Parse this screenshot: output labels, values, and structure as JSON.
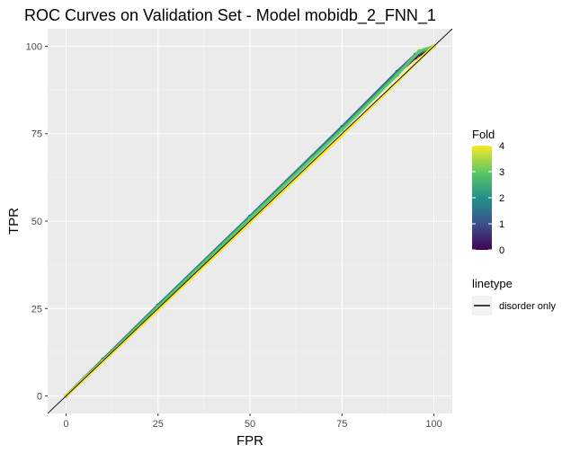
{
  "chart_data": {
    "type": "line",
    "title": "ROC Curves on Validation Set - Model mobidb_2_FNN_1",
    "xlabel": "FPR",
    "ylabel": "TPR",
    "xlim": [
      -5,
      105
    ],
    "ylim": [
      -5,
      105
    ],
    "x_ticks": [
      0,
      25,
      50,
      75,
      100
    ],
    "y_ticks": [
      0,
      25,
      50,
      75,
      100
    ],
    "grid": true,
    "panel_background": "#ebebeb",
    "reference_line": {
      "from": [
        0,
        0
      ],
      "to": [
        100,
        100
      ],
      "color": "#000000"
    },
    "colorbar": {
      "title": "Fold",
      "min": 0,
      "max": 4,
      "ticks": [
        0,
        1,
        2,
        3,
        4
      ],
      "palette": [
        "#440154",
        "#3b528b",
        "#21918c",
        "#5ec962",
        "#fde725"
      ]
    },
    "linetype_legend": {
      "title": "linetype",
      "label": "disorder only"
    },
    "series": [
      {
        "fold": 0,
        "color": "#440154",
        "points": [
          [
            0,
            0
          ],
          [
            10,
            10.3
          ],
          [
            25,
            25.6
          ],
          [
            50,
            51
          ],
          [
            75,
            76.5
          ],
          [
            90,
            92.2
          ],
          [
            95,
            96.8
          ],
          [
            100,
            100
          ]
        ]
      },
      {
        "fold": 1,
        "color": "#3b528b",
        "points": [
          [
            0,
            0
          ],
          [
            10,
            10.4
          ],
          [
            25,
            25.9
          ],
          [
            50,
            51.3
          ],
          [
            75,
            76.9
          ],
          [
            90,
            92.7
          ],
          [
            95,
            97.6
          ],
          [
            100,
            100
          ]
        ]
      },
      {
        "fold": 2,
        "color": "#21918c",
        "points": [
          [
            0,
            0
          ],
          [
            10,
            10.2
          ],
          [
            25,
            25.7
          ],
          [
            50,
            51.1
          ],
          [
            75,
            76.6
          ],
          [
            90,
            92.3
          ],
          [
            96,
            98.2
          ],
          [
            100,
            100
          ]
        ]
      },
      {
        "fold": 3,
        "color": "#5ec962",
        "points": [
          [
            0,
            0
          ],
          [
            10,
            10.1
          ],
          [
            25,
            25.4
          ],
          [
            50,
            50.8
          ],
          [
            75,
            76.1
          ],
          [
            90,
            91.8
          ],
          [
            96,
            98.6
          ],
          [
            100,
            100
          ]
        ]
      },
      {
        "fold": 4,
        "color": "#fde725",
        "points": [
          [
            0,
            0
          ],
          [
            10,
            9.8
          ],
          [
            25,
            24.6
          ],
          [
            50,
            49.6
          ],
          [
            75,
            74.5
          ],
          [
            90,
            89.8
          ],
          [
            96,
            96.2
          ],
          [
            100,
            100
          ]
        ]
      }
    ]
  }
}
